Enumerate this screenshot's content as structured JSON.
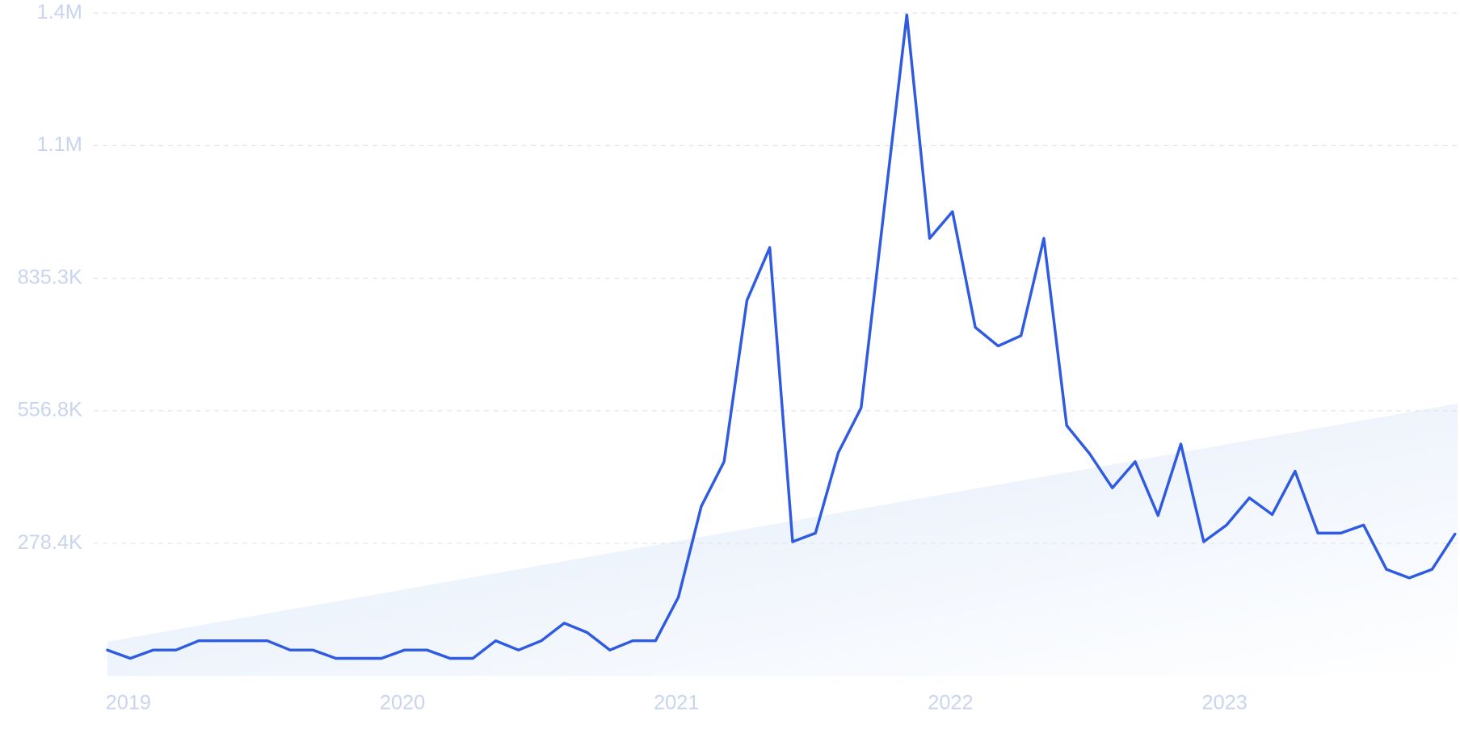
{
  "chart_data": {
    "type": "line",
    "categories": [
      "2019",
      null,
      null,
      null,
      null,
      null,
      null,
      null,
      null,
      null,
      null,
      null,
      "2020",
      null,
      null,
      null,
      null,
      null,
      null,
      null,
      null,
      null,
      null,
      null,
      "2021",
      null,
      null,
      null,
      null,
      null,
      null,
      null,
      null,
      null,
      null,
      null,
      "2022",
      null,
      null,
      null,
      null,
      null,
      null,
      null,
      null,
      null,
      null,
      null,
      "2023",
      null,
      null,
      null,
      null,
      null,
      null,
      null,
      null,
      null,
      null,
      null
    ],
    "series": [
      {
        "color": "#2f5be0",
        "values": [
          54500,
          37000,
          54500,
          54500,
          74000,
          74000,
          74000,
          74000,
          54500,
          54500,
          37000,
          37000,
          37000,
          54500,
          54500,
          37000,
          37000,
          74000,
          54500,
          74000,
          111000,
          91500,
          54500,
          74000,
          74000,
          165500,
          356000,
          450000,
          788500,
          899500,
          282000,
          300000,
          469000,
          563000,
          977000,
          1388000,
          919000,
          975000,
          732000,
          693000,
          714500,
          919000,
          526000,
          467000,
          395000,
          450000,
          337000,
          487000,
          282000,
          317000,
          374000,
          339000,
          430000,
          300000,
          300000,
          317000,
          224000,
          206000,
          224000,
          298000
        ]
      }
    ],
    "trend_values": [
      72000,
      572000
    ],
    "trend_color": "#e3edfb",
    "ylim": [
      0,
      1392083
    ],
    "yticks": [
      {
        "value": 278417,
        "label": "278.4K"
      },
      {
        "value": 556833,
        "label": "556.8K"
      },
      {
        "value": 835250,
        "label": "835.3K"
      },
      {
        "value": 1113667,
        "label": "1.1M"
      },
      {
        "value": 1392083,
        "label": "1.4M"
      }
    ],
    "grid": true
  }
}
